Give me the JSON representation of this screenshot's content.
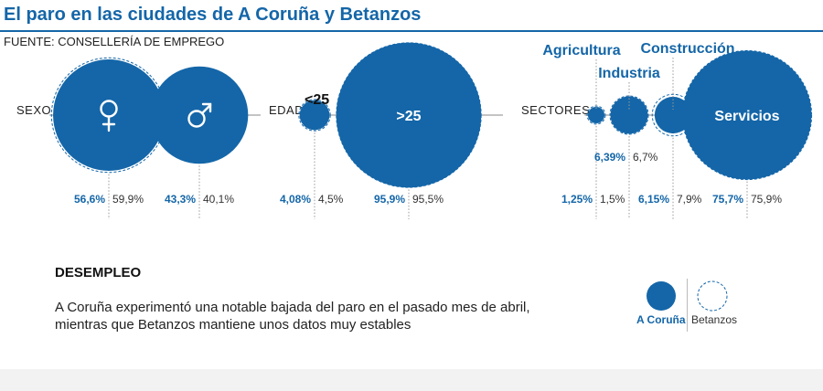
{
  "title": "El paro en las ciudades de A Coruña y Betanzos",
  "source": "FUENTE: CONSELLERÍA DE EMPREGO",
  "colors": {
    "accent": "#1466a8",
    "text": "#222222",
    "rule": "#999999"
  },
  "chart_data": {
    "type": "bubble",
    "groups": [
      {
        "label": "SEXO",
        "items": [
          {
            "name": "female",
            "icon": "female-symbol-icon",
            "coruna": 56.6,
            "coruna_label": "56,6%",
            "betanzos": 59.9,
            "betanzos_label": "59,9%"
          },
          {
            "name": "male",
            "icon": "male-symbol-icon",
            "coruna": 43.3,
            "coruna_label": "43,3%",
            "betanzos": 40.1,
            "betanzos_label": "40,1%"
          }
        ]
      },
      {
        "label": "EDAD",
        "items": [
          {
            "name": "<25",
            "coruna": 4.08,
            "coruna_label": "4,08%",
            "betanzos": 4.5,
            "betanzos_label": "4,5%"
          },
          {
            "name": ">25",
            "coruna": 95.9,
            "coruna_label": "95,9%",
            "betanzos": 95.5,
            "betanzos_label": "95,5%"
          }
        ]
      },
      {
        "label": "SECTORES",
        "items": [
          {
            "name": "Agricultura",
            "coruna": 1.25,
            "coruna_label": "1,25%",
            "betanzos": 1.5,
            "betanzos_label": "1,5%"
          },
          {
            "name": "Industria",
            "coruna": 6.39,
            "coruna_label": "6,39%",
            "betanzos": 6.7,
            "betanzos_label": "6,7%"
          },
          {
            "name": "Construcción",
            "coruna": 6.15,
            "coruna_label": "6,15%",
            "betanzos": 7.9,
            "betanzos_label": "7,9%"
          },
          {
            "name": "Servicios",
            "coruna": 75.7,
            "coruna_label": "75,7%",
            "betanzos": 75.9,
            "betanzos_label": "75,9%"
          }
        ]
      }
    ],
    "legend": [
      {
        "name": "A Coruña",
        "style": "filled"
      },
      {
        "name": "Betanzos",
        "style": "dashed"
      }
    ]
  },
  "section": {
    "heading": "DESEMPLEO",
    "text": "A Coruña experimentó una notable bajada del paro en el pasado mes de abril, mientras que Betanzos mantiene unos datos muy estables"
  }
}
